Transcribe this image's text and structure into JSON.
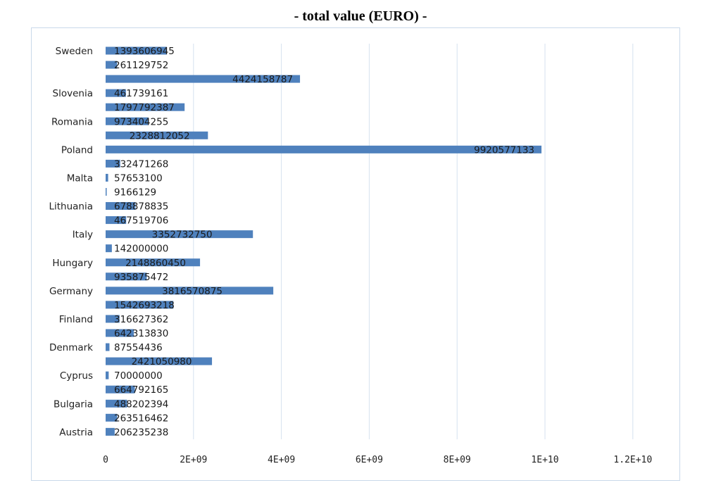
{
  "chart_data": {
    "type": "bar",
    "orientation": "horizontal",
    "title": "- total value (EURO) -",
    "xlabel": "",
    "ylabel": "",
    "xlim": [
      0,
      12000000000
    ],
    "x_ticks": [
      0,
      2000000000,
      4000000000,
      6000000000,
      8000000000,
      10000000000,
      12000000000
    ],
    "x_tick_labels": [
      "0",
      "2E+09",
      "4E+09",
      "6E+09",
      "8E+09",
      "1E+10",
      "1.2E+10"
    ],
    "grid": "vertical",
    "legend": "none",
    "bar_color": "#4f81bd",
    "bars": [
      {
        "label": "Sweden",
        "value": 1393606945
      },
      {
        "label": "",
        "value": 261129752
      },
      {
        "label": "",
        "value": 4424158787
      },
      {
        "label": "Slovenia",
        "value": 461739161
      },
      {
        "label": "",
        "value": 1797792387
      },
      {
        "label": "Romania",
        "value": 973404255
      },
      {
        "label": "",
        "value": 2328812052
      },
      {
        "label": "Poland",
        "value": 9920577133
      },
      {
        "label": "",
        "value": 332471268
      },
      {
        "label": "Malta",
        "value": 57653100
      },
      {
        "label": "",
        "value": 9166129
      },
      {
        "label": "Lithuania",
        "value": 678878835
      },
      {
        "label": "",
        "value": 467519706
      },
      {
        "label": "Italy",
        "value": 3352732750
      },
      {
        "label": "",
        "value": 142000000
      },
      {
        "label": "Hungary",
        "value": 2148860450
      },
      {
        "label": "",
        "value": 935875472
      },
      {
        "label": "Germany",
        "value": 3816570875
      },
      {
        "label": "",
        "value": 1542693218
      },
      {
        "label": "Finland",
        "value": 316627362
      },
      {
        "label": "",
        "value": 642313830
      },
      {
        "label": "Denmark",
        "value": 87554436
      },
      {
        "label": "",
        "value": 2421050980
      },
      {
        "label": "Cyprus",
        "value": 70000000
      },
      {
        "label": "",
        "value": 664792165
      },
      {
        "label": "Bulgaria",
        "value": 488202394
      },
      {
        "label": "",
        "value": 263516462
      },
      {
        "label": "Austria",
        "value": 206235238
      }
    ],
    "category_labels": [
      "Sweden",
      "Slovenia",
      "Romania",
      "Poland",
      "Malta",
      "Lithuania",
      "Italy",
      "Hungary",
      "Germany",
      "Finland",
      "Denmark",
      "Cyprus",
      "Bulgaria",
      "Austria"
    ],
    "data_labels": [
      "1393606945",
      "261129752",
      "4424158787",
      "461739161",
      "1797792387",
      "973404255",
      "2328812052",
      "9920577133",
      "332471268",
      "57653100",
      "9166129",
      "678878835",
      "467519706",
      "3352732750",
      "142000000",
      "2148860450",
      "935875472",
      "3816570875",
      "1542693218",
      "316627362",
      "642313830",
      "87554436",
      "2421050980",
      "70000000",
      "664792165",
      "488202394",
      "263516462",
      "206235238"
    ]
  }
}
